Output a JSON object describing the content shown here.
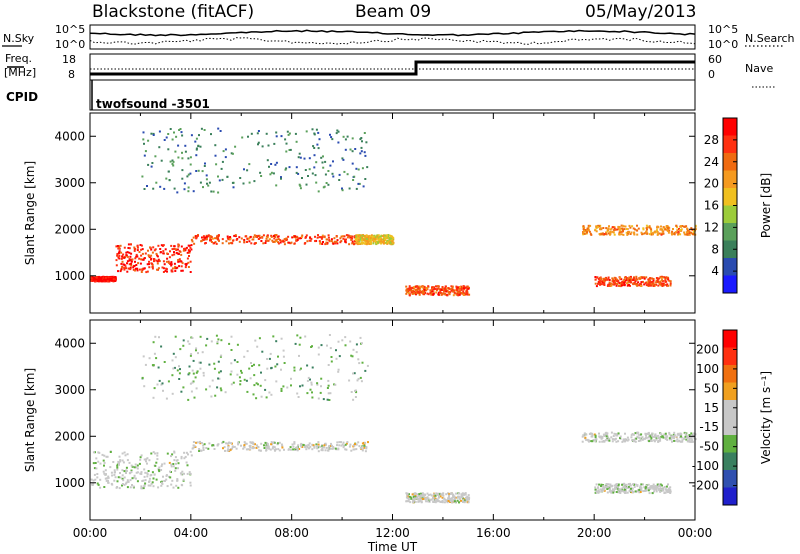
{
  "header": {
    "station": "Blackstone (fitACF)",
    "beam": "Beam 09",
    "date": "05/May/2013"
  },
  "top_panels": {
    "nsky_label": "N.Sky",
    "nsearch_label": "N.Search",
    "noise_ticks_left": [
      "10^5",
      "10^0"
    ],
    "noise_ticks_right": [
      "10^5",
      "10^0"
    ],
    "freq_label_1": "Freq.",
    "freq_label_2": "[MHz]",
    "freq_ticks": [
      "18",
      "8"
    ],
    "nave_label": "Nave",
    "nave_ticks": [
      "60",
      "0"
    ],
    "cpid_label": "CPID",
    "cpid_value": "twofsound -3501"
  },
  "colors": {
    "power_scale": [
      "#1a1aff",
      "#2a4bb0",
      "#3a7f5a",
      "#5aa05a",
      "#9ccc3a",
      "#f0c020",
      "#f59a20",
      "#f06a10",
      "#ff3010",
      "#ff0000"
    ],
    "velocity_scale": [
      "#2020cc",
      "#3050b0",
      "#3a8060",
      "#60b040",
      "#c8c8c8",
      "#c8c8c8",
      "#f0a020",
      "#f07010",
      "#ff3010",
      "#ff0000"
    ]
  },
  "chart_data": [
    {
      "type": "heatmap",
      "panel": "power",
      "xlabel": "",
      "ylabel": "Slant Range [km]",
      "yticks": [
        "1000",
        "2000",
        "3000",
        "4000"
      ],
      "ylim": [
        200,
        4500
      ],
      "xlim": [
        0,
        24
      ],
      "colorbar_label": "Power [dB]",
      "colorbar_ticks": [
        "4",
        "8",
        "12",
        "16",
        "20",
        "24",
        "28"
      ],
      "colorbar_range": [
        0,
        32
      ],
      "features": [
        {
          "time": [
            0,
            1
          ],
          "range": [
            900,
            1000
          ],
          "value": 30
        },
        {
          "time": [
            1,
            4
          ],
          "range": [
            1100,
            1700
          ],
          "value": 28
        },
        {
          "time": [
            4,
            10.5
          ],
          "range": [
            1700,
            1900
          ],
          "value": 26
        },
        {
          "time": [
            10.5,
            12
          ],
          "range": [
            1700,
            1900
          ],
          "value": 18
        },
        {
          "time": [
            12.5,
            15
          ],
          "range": [
            600,
            800
          ],
          "value": 26
        },
        {
          "time": [
            20,
            23
          ],
          "range": [
            800,
            1000
          ],
          "value": 26
        },
        {
          "time": [
            19.5,
            24
          ],
          "range": [
            1900,
            2100
          ],
          "value": 22
        },
        {
          "time": [
            2,
            11
          ],
          "range": [
            2800,
            4200
          ],
          "value": 8
        }
      ]
    },
    {
      "type": "heatmap",
      "panel": "velocity",
      "xlabel": "Time UT",
      "ylabel": "Slant Range [km]",
      "yticks": [
        "1000",
        "2000",
        "3000",
        "4000"
      ],
      "ylim": [
        200,
        4500
      ],
      "xlim": [
        0,
        24
      ],
      "xticks": [
        "00:00",
        "04:00",
        "08:00",
        "12:00",
        "16:00",
        "20:00",
        "00:00"
      ],
      "colorbar_label": "Velocity [m s⁻¹]",
      "colorbar_ticks": [
        "200",
        "100",
        "50",
        "15",
        "-15",
        "-50",
        "-100",
        "-200"
      ],
      "colorbar_range": [
        -250,
        250
      ],
      "features": [
        {
          "time": [
            0,
            4
          ],
          "range": [
            900,
            1700
          ],
          "value": -10
        },
        {
          "time": [
            4,
            11
          ],
          "range": [
            1700,
            1900
          ],
          "value": 0
        },
        {
          "time": [
            12.5,
            15
          ],
          "range": [
            600,
            800
          ],
          "value": 0
        },
        {
          "time": [
            19.5,
            24
          ],
          "range": [
            1900,
            2100
          ],
          "value": -10
        },
        {
          "time": [
            20,
            23
          ],
          "range": [
            800,
            1000
          ],
          "value": -10
        },
        {
          "time": [
            2,
            11
          ],
          "range": [
            2800,
            4200
          ],
          "value": -60
        }
      ]
    }
  ]
}
